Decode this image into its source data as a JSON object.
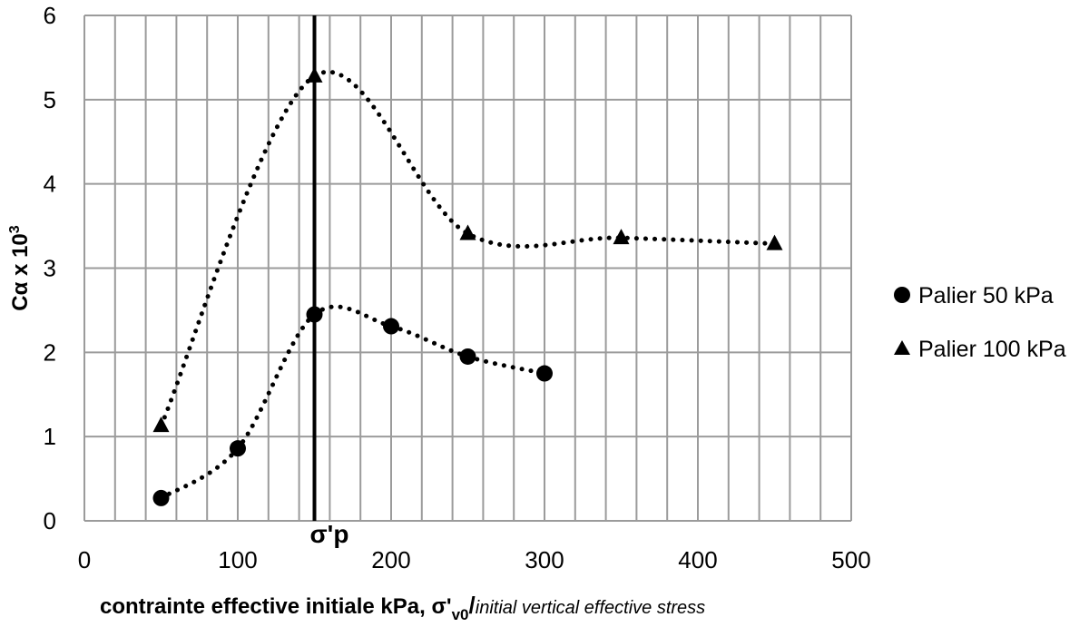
{
  "chart_data": {
    "type": "line",
    "title": "",
    "xlabel": {
      "main": "contrainte effective initiale kPa, σ'",
      "sub": "v0",
      "slash": "/",
      "english": "initial vertical effective stress"
    },
    "ylabel": {
      "main": "Cα  x 10",
      "sup": "3"
    },
    "xlim": [
      0,
      500
    ],
    "ylim": [
      0,
      6
    ],
    "x_ticks": [
      "0",
      "100",
      "200",
      "300",
      "400",
      "500"
    ],
    "y_ticks": [
      "0",
      "1",
      "2",
      "3",
      "4",
      "5",
      "6"
    ],
    "x_minor_step": 20,
    "grid": true,
    "legend_position": "right",
    "series": [
      {
        "name": "Palier 50 kPa",
        "marker": "circle",
        "line": "dotted-smooth",
        "x": [
          50,
          100,
          150,
          200,
          250,
          300
        ],
        "y": [
          0.27,
          0.86,
          2.45,
          2.31,
          1.95,
          1.75
        ]
      },
      {
        "name": "Palier 100 kPa",
        "marker": "triangle",
        "line": "dotted-smooth",
        "x": [
          50,
          150,
          250,
          350,
          450
        ],
        "y": [
          1.13,
          5.28,
          3.41,
          3.36,
          3.29
        ]
      }
    ],
    "reference_line": {
      "x": 150,
      "label": "σ'p"
    },
    "colors": {
      "grid": "#9b9b9b",
      "series": "#000000",
      "reference": "#000000"
    }
  }
}
